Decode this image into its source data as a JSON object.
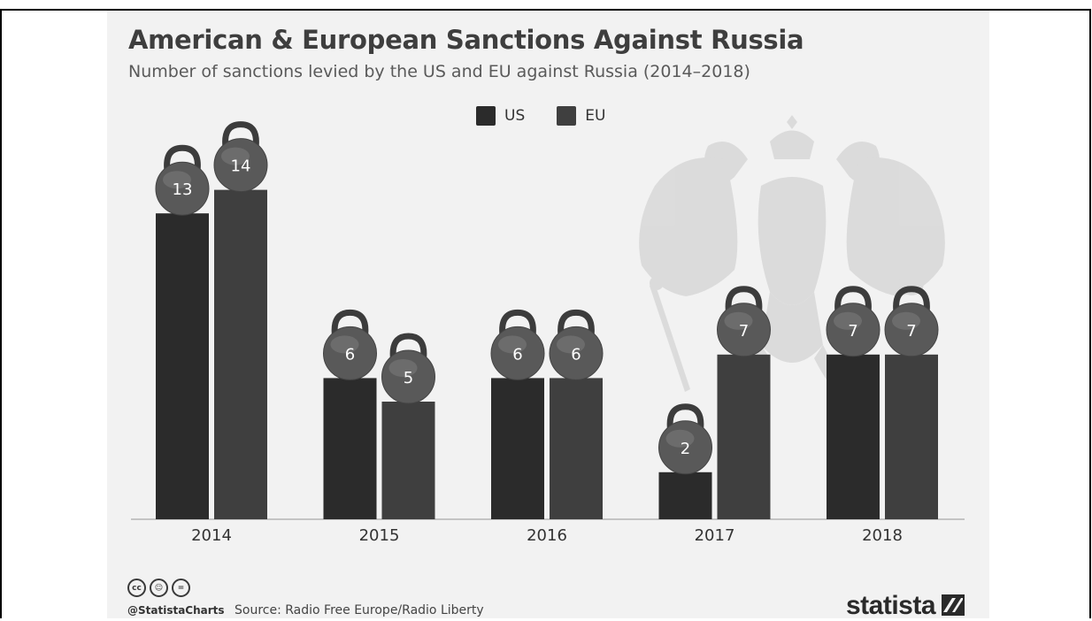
{
  "header": {
    "title": "American & European Sanctions Against Russia",
    "subtitle": "Number of sanctions levied by the US and EU against Russia (2014–2018)"
  },
  "legend": {
    "items": [
      {
        "label": "US",
        "color": "#2b2b2b"
      },
      {
        "label": "EU",
        "color": "#3f3f3f"
      }
    ]
  },
  "footer": {
    "cc_icons": [
      "cc-icon",
      "by-icon",
      "nd-icon"
    ],
    "handle": "@StatistaCharts",
    "source": "Source: Radio Free Europe/Radio Liberty",
    "brand": "statista"
  },
  "chart_data": {
    "type": "bar",
    "categories": [
      "2014",
      "2015",
      "2016",
      "2017",
      "2018"
    ],
    "series": [
      {
        "name": "US",
        "values": [
          13,
          6,
          6,
          2,
          7
        ],
        "color": "#2b2b2b"
      },
      {
        "name": "EU",
        "values": [
          14,
          5,
          6,
          7,
          7
        ],
        "color": "#3f3f3f"
      }
    ],
    "title": "American & European Sanctions Against Russia",
    "xlabel": "",
    "ylabel": "",
    "ylim": [
      0,
      14
    ],
    "grid": false,
    "legend_position": "top-center",
    "data_label_style": "kettlebell"
  }
}
